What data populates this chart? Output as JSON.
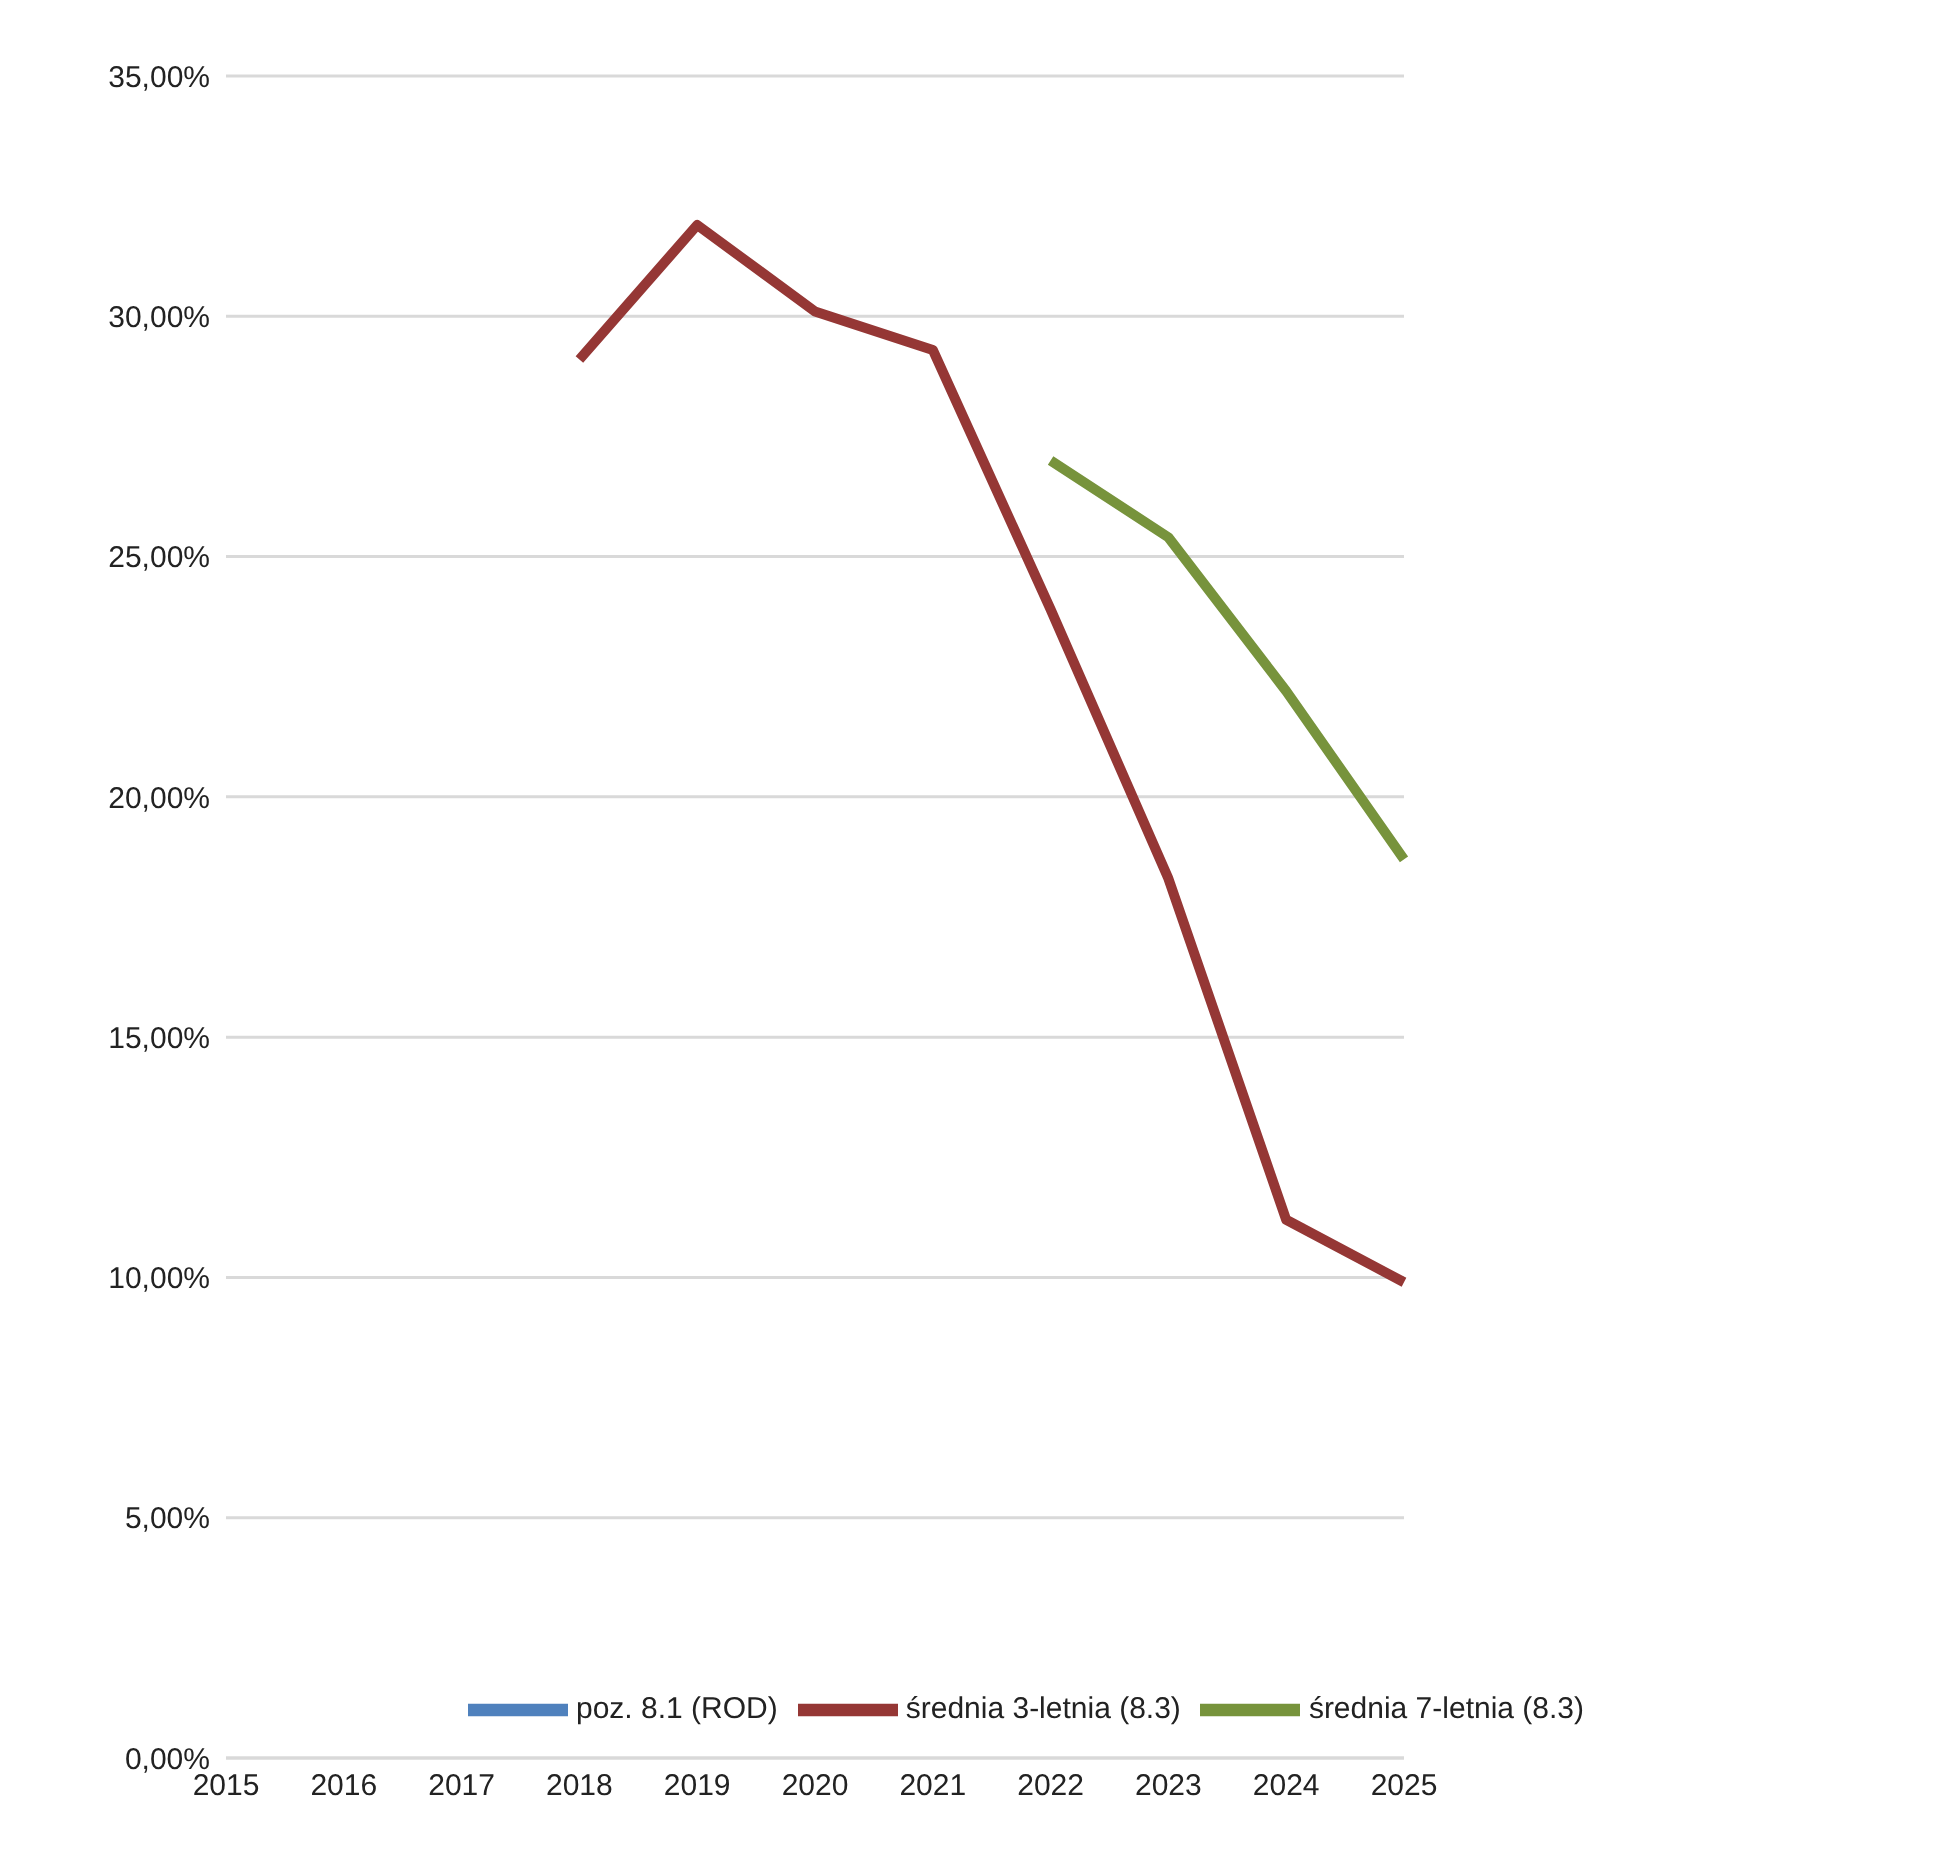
{
  "chart_data": {
    "type": "line",
    "categories": [
      "2015",
      "2016",
      "2017",
      "2018",
      "2019",
      "2020",
      "2021",
      "2022",
      "2023",
      "2024",
      "2025"
    ],
    "series": [
      {
        "name": "poz. 8.1 (ROD)",
        "color": "#4f81bd",
        "values": [
          null,
          null,
          null,
          null,
          null,
          null,
          null,
          null,
          null,
          null,
          null
        ]
      },
      {
        "name": "średnia 3-letnia (8.3)",
        "color": "#953735",
        "values": [
          null,
          null,
          null,
          29.1,
          31.9,
          30.1,
          29.3,
          23.9,
          18.3,
          11.2,
          9.9
        ]
      },
      {
        "name": "średnia 7-letnia (8.3)",
        "color": "#77933c",
        "values": [
          null,
          null,
          null,
          null,
          null,
          null,
          null,
          27.0,
          25.4,
          22.2,
          18.7
        ]
      }
    ],
    "ylim": [
      0,
      35
    ],
    "yticks": [
      {
        "value": 0,
        "label": "0,00%"
      },
      {
        "value": 5,
        "label": "5,00%"
      },
      {
        "value": 10,
        "label": "10,00%"
      },
      {
        "value": 15,
        "label": "15,00%"
      },
      {
        "value": 20,
        "label": "20,00%"
      },
      {
        "value": 25,
        "label": "25,00%"
      },
      {
        "value": 30,
        "label": "30,00%"
      },
      {
        "value": 35,
        "label": "35,00%"
      }
    ],
    "grid": "y",
    "legend": "bottom",
    "marker": "none",
    "line_style": "solid"
  }
}
